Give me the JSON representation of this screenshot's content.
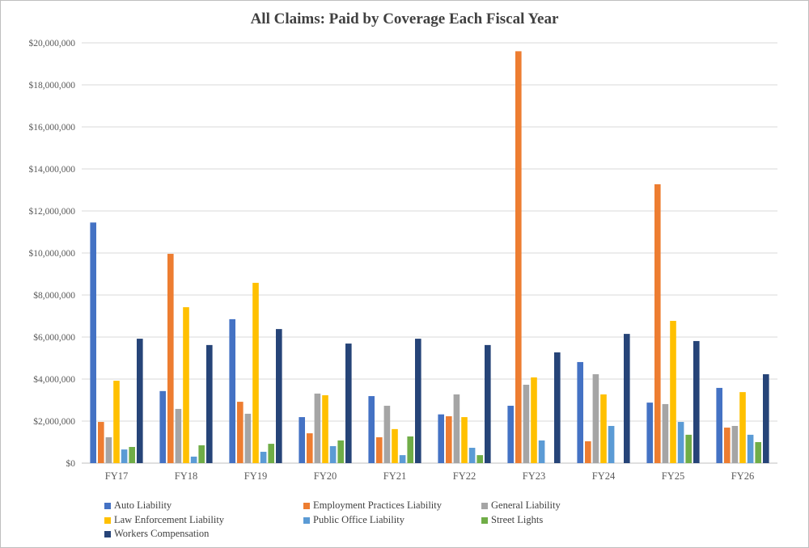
{
  "chart_data": {
    "type": "bar",
    "title": "All Claims: Paid by Coverage Each Fiscal Year",
    "xlabel": "",
    "ylabel": "",
    "ylim": [
      0,
      20000000
    ],
    "yticks": [
      "$0",
      "$2,000,000",
      "$4,000,000",
      "$6,000,000",
      "$8,000,000",
      "$10,000,000",
      "$12,000,000",
      "$14,000,000",
      "$16,000,000",
      "$18,000,000",
      "$20,000,000"
    ],
    "grid": true,
    "legend_position": "bottom",
    "categories": [
      "FY17",
      "FY18",
      "FY19",
      "FY20",
      "FY21",
      "FY22",
      "FY23",
      "FY24",
      "FY25",
      "FY26"
    ],
    "series": [
      {
        "name": "Auto Liability",
        "color": "#4472c4",
        "values": [
          11450000,
          3430000,
          6850000,
          2190000,
          3190000,
          2320000,
          2730000,
          4810000,
          2880000,
          3580000
        ]
      },
      {
        "name": "Employment Practices Liability",
        "color": "#ed7d31",
        "values": [
          1960000,
          9960000,
          2920000,
          1420000,
          1230000,
          2230000,
          19600000,
          1040000,
          13270000,
          1690000
        ]
      },
      {
        "name": "General Liability",
        "color": "#a5a5a5",
        "values": [
          1230000,
          2580000,
          2350000,
          3310000,
          2730000,
          3270000,
          3730000,
          4230000,
          2810000,
          1770000
        ]
      },
      {
        "name": "Law Enforcement Liability",
        "color": "#ffc000",
        "values": [
          3920000,
          7420000,
          8580000,
          3230000,
          1620000,
          2190000,
          4080000,
          3270000,
          6770000,
          3380000
        ]
      },
      {
        "name": "Public Office Liability",
        "color": "#5b9bd5",
        "values": [
          650000,
          310000,
          540000,
          810000,
          380000,
          730000,
          1080000,
          1770000,
          1960000,
          1350000
        ]
      },
      {
        "name": "Street Lights",
        "color": "#70ad47",
        "values": [
          770000,
          850000,
          920000,
          1080000,
          1270000,
          380000,
          0,
          0,
          1350000,
          1000000
        ]
      },
      {
        "name": "Workers Compensation",
        "color": "#264478",
        "values": [
          5920000,
          5620000,
          6380000,
          5690000,
          5920000,
          5620000,
          5270000,
          6150000,
          5810000,
          4230000
        ]
      }
    ]
  }
}
